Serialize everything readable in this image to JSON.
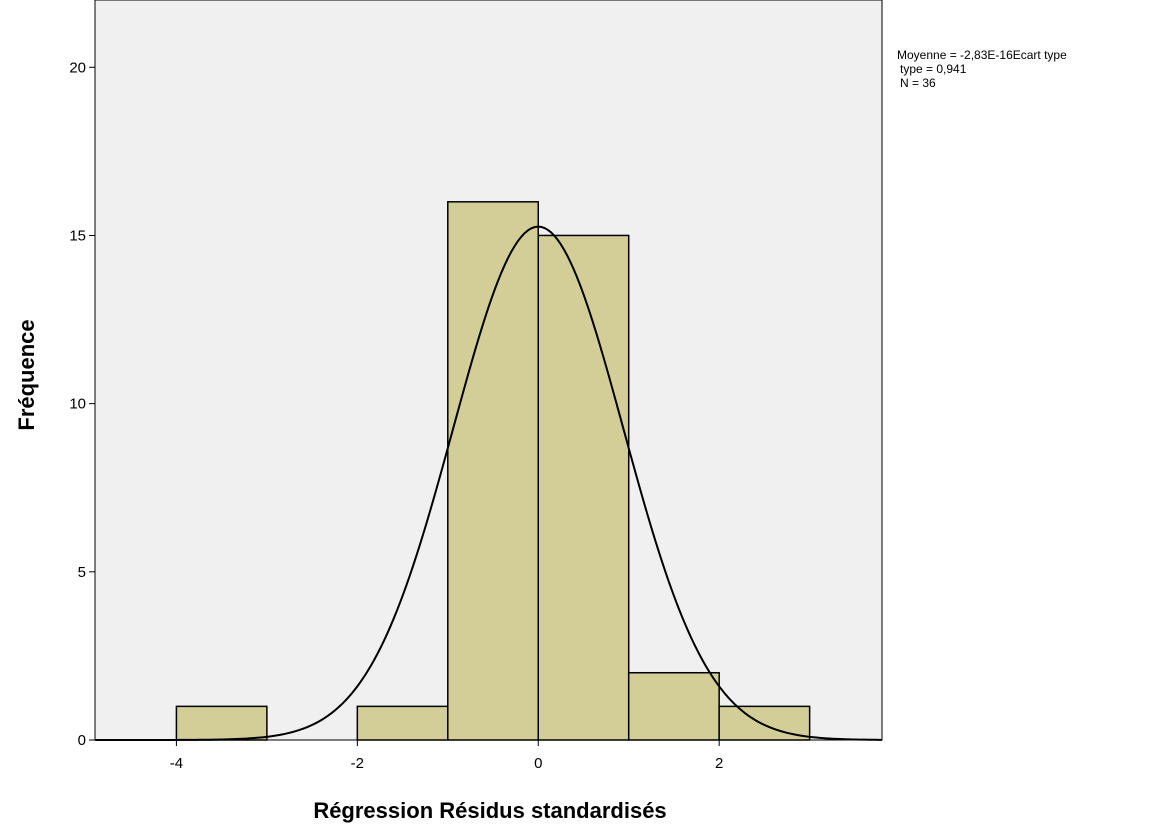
{
  "chart_data": {
    "type": "bar",
    "subtype": "histogram",
    "title": "",
    "xlabel": "Régression Résidus standardisés",
    "ylabel": "Fréquence",
    "bins": [
      {
        "x0": -4,
        "x1": -3,
        "count": 1
      },
      {
        "x0": -3,
        "x1": -2,
        "count": 0
      },
      {
        "x0": -2,
        "x1": -1,
        "count": 1
      },
      {
        "x0": -1,
        "x1": 0,
        "count": 16
      },
      {
        "x0": 0,
        "x1": 1,
        "count": 15
      },
      {
        "x0": 1,
        "x1": 2,
        "count": 2
      },
      {
        "x0": 2,
        "x1": 3,
        "count": 1
      }
    ],
    "xlim": [
      -4.9,
      3.8
    ],
    "ylim": [
      0,
      22
    ],
    "xticks": [
      -4,
      -2,
      0,
      2
    ],
    "yticks": [
      0,
      5,
      10,
      15,
      20
    ],
    "x_tick_labels": [
      "-4",
      "-2",
      "0",
      "2"
    ],
    "y_tick_labels": [
      "0",
      "5",
      "10",
      "15",
      "20"
    ],
    "normal_curve": {
      "mean": 0,
      "sd": 0.941,
      "n": 36,
      "bin_width": 1
    },
    "stats_lines": [
      "Moyenne = -2,83E-16Ecart type",
      "type = 0,941",
      "N = 36"
    ],
    "legend_position": "right",
    "grid": false,
    "colors": {
      "plot_background": "#f0f0f0",
      "bar_fill": "#d3ce97",
      "bar_stroke": "#000000",
      "curve": "#000000"
    }
  }
}
